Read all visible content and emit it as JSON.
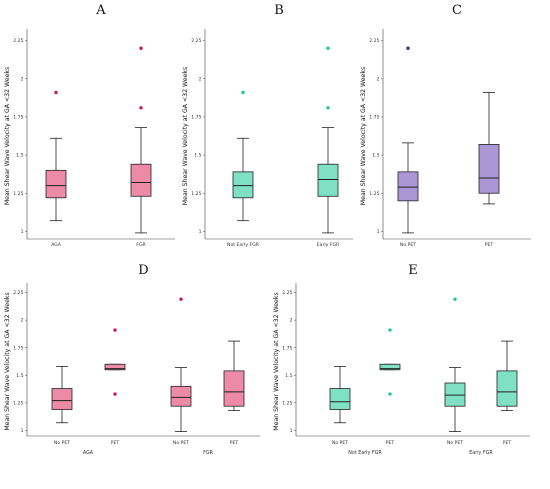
{
  "chart_data": [
    {
      "type": "box",
      "title": "A",
      "ylabel": "Mean Shear Wave Velocity at GA <32 Weeks",
      "ylim": [
        0.95,
        2.3
      ],
      "yticks": [
        "1",
        "1.25",
        "1.5",
        "1.75",
        "2",
        "2.25"
      ],
      "categories": [
        "AGA",
        "FGR"
      ],
      "group_labels": [],
      "colors": [
        "#ec8aa8",
        "#ec8aa8"
      ],
      "outlier_colors": [
        "#c8194f",
        "#c8194f"
      ],
      "boxes": [
        {
          "whisker_low": 1.07,
          "q1": 1.22,
          "median": 1.3,
          "q3": 1.4,
          "whisker_high": 1.61,
          "outliers": [
            1.91
          ]
        },
        {
          "whisker_low": 0.99,
          "q1": 1.23,
          "median": 1.32,
          "q3": 1.44,
          "whisker_high": 1.68,
          "outliers": [
            1.81,
            2.2
          ]
        }
      ]
    },
    {
      "type": "box",
      "title": "B",
      "ylabel": "Mean Shear Wave Velocity at GA <32 Weeks",
      "ylim": [
        0.95,
        2.3
      ],
      "yticks": [
        "1",
        "1.25",
        "1.5",
        "1.75",
        "2",
        "2.25"
      ],
      "categories": [
        "Not Early FGR",
        "Early FGR"
      ],
      "group_labels": [],
      "colors": [
        "#7fe0c4",
        "#7fe0c4"
      ],
      "outlier_colors": [
        "#22c797",
        "#22c797"
      ],
      "boxes": [
        {
          "whisker_low": 1.07,
          "q1": 1.22,
          "median": 1.3,
          "q3": 1.39,
          "whisker_high": 1.61,
          "outliers": [
            1.91
          ]
        },
        {
          "whisker_low": 0.99,
          "q1": 1.23,
          "median": 1.34,
          "q3": 1.44,
          "whisker_high": 1.68,
          "outliers": [
            1.81,
            2.2
          ]
        }
      ]
    },
    {
      "type": "box",
      "title": "C",
      "ylabel": "Mean Shear Wave Velocity at GA <32 Weeks",
      "ylim": [
        0.95,
        2.3
      ],
      "yticks": [
        "1",
        "1.25",
        "1.5",
        "1.75",
        "2",
        "2.25"
      ],
      "categories": [
        "No PET",
        "PET"
      ],
      "group_labels": [],
      "colors": [
        "#ab97d6",
        "#ab97d6"
      ],
      "outlier_colors": [
        "#3a2f7a",
        "#3a2f7a"
      ],
      "boxes": [
        {
          "whisker_low": 0.99,
          "q1": 1.2,
          "median": 1.29,
          "q3": 1.39,
          "whisker_high": 1.58,
          "outliers": [
            2.2
          ]
        },
        {
          "whisker_low": 1.18,
          "q1": 1.25,
          "median": 1.35,
          "q3": 1.57,
          "whisker_high": 1.91,
          "outliers": []
        }
      ]
    },
    {
      "type": "box",
      "title": "D",
      "ylabel": "Mean Shear Wave Velocity at GA <32 Weeks",
      "ylim": [
        0.95,
        2.3
      ],
      "yticks": [
        "1",
        "1.25",
        "1.5",
        "1.75",
        "2",
        "2.25"
      ],
      "categories": [
        "No PET",
        "PET",
        "No PET",
        "PET"
      ],
      "group_labels": [
        "AGA",
        "FGR"
      ],
      "colors": [
        "#ec8aa8",
        "#ec8aa8",
        "#ec8aa8",
        "#ec8aa8"
      ],
      "outlier_colors": [
        "#c8194f",
        "#c8194f",
        "#c8194f",
        "#c8194f"
      ],
      "boxes": [
        {
          "whisker_low": 1.07,
          "q1": 1.19,
          "median": 1.27,
          "q3": 1.38,
          "whisker_high": 1.58,
          "outliers": []
        },
        {
          "whisker_low": 1.55,
          "q1": 1.55,
          "median": 1.56,
          "q3": 1.6,
          "whisker_high": 1.6,
          "outliers": [
            1.33,
            1.91
          ]
        },
        {
          "whisker_low": 0.99,
          "q1": 1.22,
          "median": 1.3,
          "q3": 1.4,
          "whisker_high": 1.57,
          "outliers": [
            2.19
          ]
        },
        {
          "whisker_low": 1.18,
          "q1": 1.22,
          "median": 1.35,
          "q3": 1.54,
          "whisker_high": 1.81,
          "outliers": []
        }
      ]
    },
    {
      "type": "box",
      "title": "E",
      "ylabel": "Mean Shear Wave Velocity at GA <32 Weeks",
      "ylim": [
        0.95,
        2.3
      ],
      "yticks": [
        "1",
        "1.25",
        "1.5",
        "1.75",
        "2",
        "2.25"
      ],
      "categories": [
        "No PET",
        "PET",
        "No PET",
        "PET"
      ],
      "group_labels": [
        "Not Early FGR",
        "Early FGR"
      ],
      "colors": [
        "#7fe0c4",
        "#7fe0c4",
        "#7fe0c4",
        "#7fe0c4"
      ],
      "outlier_colors": [
        "#22c797",
        "#22c797",
        "#22c797",
        "#22c797"
      ],
      "boxes": [
        {
          "whisker_low": 1.07,
          "q1": 1.19,
          "median": 1.26,
          "q3": 1.38,
          "whisker_high": 1.58,
          "outliers": []
        },
        {
          "whisker_low": 1.55,
          "q1": 1.55,
          "median": 1.56,
          "q3": 1.6,
          "whisker_high": 1.6,
          "outliers": [
            1.33,
            1.91
          ]
        },
        {
          "whisker_low": 0.99,
          "q1": 1.22,
          "median": 1.32,
          "q3": 1.43,
          "whisker_high": 1.57,
          "outliers": [
            2.19
          ]
        },
        {
          "whisker_low": 1.18,
          "q1": 1.22,
          "median": 1.35,
          "q3": 1.54,
          "whisker_high": 1.81,
          "outliers": []
        }
      ]
    }
  ]
}
